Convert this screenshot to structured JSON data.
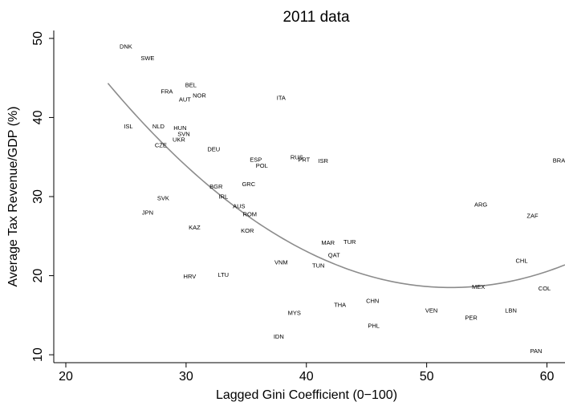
{
  "chart_data": {
    "type": "scatter",
    "title": "2011 data",
    "xlabel": "Lagged Gini Coefficient (0−100)",
    "ylabel": "Average Tax Revenue/GDP (%)",
    "xlim": [
      19,
      61.5
    ],
    "ylim": [
      9,
      51
    ],
    "xticks": [
      20,
      30,
      40,
      50,
      60
    ],
    "yticks": [
      10,
      20,
      30,
      40,
      50
    ],
    "x_tick_labels": [
      "20",
      "30",
      "40",
      "50",
      "60"
    ],
    "y_tick_labels": [
      "10",
      "20",
      "30",
      "40",
      "50"
    ],
    "grid": false,
    "marker": "text labels",
    "points": [
      {
        "label": "DNK",
        "x": 25.0,
        "y": 49.0
      },
      {
        "label": "SWE",
        "x": 26.8,
        "y": 47.5
      },
      {
        "label": "ISL",
        "x": 25.2,
        "y": 38.9
      },
      {
        "label": "FRA",
        "x": 28.4,
        "y": 43.3
      },
      {
        "label": "BEL",
        "x": 30.4,
        "y": 44.1
      },
      {
        "label": "AUT",
        "x": 29.9,
        "y": 42.3
      },
      {
        "label": "NOR",
        "x": 31.1,
        "y": 42.8
      },
      {
        "label": "NLD",
        "x": 27.7,
        "y": 38.9
      },
      {
        "label": "HUN",
        "x": 29.5,
        "y": 38.7
      },
      {
        "label": "SVN",
        "x": 29.8,
        "y": 37.9
      },
      {
        "label": "UKR",
        "x": 29.4,
        "y": 37.2
      },
      {
        "label": "CZE",
        "x": 27.9,
        "y": 36.5
      },
      {
        "label": "DEU",
        "x": 32.3,
        "y": 36.0
      },
      {
        "label": "ITA",
        "x": 37.9,
        "y": 42.5
      },
      {
        "label": "ESP",
        "x": 35.8,
        "y": 34.7
      },
      {
        "label": "POL",
        "x": 36.3,
        "y": 33.9
      },
      {
        "label": "RUS",
        "x": 39.2,
        "y": 35.0
      },
      {
        "label": "PRT",
        "x": 39.8,
        "y": 34.7
      },
      {
        "label": "ISR",
        "x": 41.4,
        "y": 34.5
      },
      {
        "label": "BRA",
        "x": 61.0,
        "y": 34.6
      },
      {
        "label": "BGR",
        "x": 32.5,
        "y": 31.3
      },
      {
        "label": "GRC",
        "x": 35.2,
        "y": 31.6
      },
      {
        "label": "IRL",
        "x": 33.1,
        "y": 30.0
      },
      {
        "label": "AUS",
        "x": 34.4,
        "y": 28.8
      },
      {
        "label": "ROM",
        "x": 35.3,
        "y": 27.8
      },
      {
        "label": "SVK",
        "x": 28.1,
        "y": 29.8
      },
      {
        "label": "JPN",
        "x": 26.8,
        "y": 28.0
      },
      {
        "label": "KAZ",
        "x": 30.7,
        "y": 26.1
      },
      {
        "label": "KOR",
        "x": 35.1,
        "y": 25.7
      },
      {
        "label": "ARG",
        "x": 54.5,
        "y": 29.0
      },
      {
        "label": "ZAF",
        "x": 58.8,
        "y": 27.6
      },
      {
        "label": "MAR",
        "x": 41.8,
        "y": 24.2
      },
      {
        "label": "TUR",
        "x": 43.6,
        "y": 24.3
      },
      {
        "label": "QAT",
        "x": 42.3,
        "y": 22.6
      },
      {
        "label": "VNM",
        "x": 37.9,
        "y": 21.7
      },
      {
        "label": "TUN",
        "x": 41.0,
        "y": 21.3
      },
      {
        "label": "CHL",
        "x": 57.9,
        "y": 21.9
      },
      {
        "label": "HRV",
        "x": 30.3,
        "y": 19.9
      },
      {
        "label": "LTU",
        "x": 33.1,
        "y": 20.1
      },
      {
        "label": "MEX",
        "x": 54.3,
        "y": 18.6
      },
      {
        "label": "COL",
        "x": 59.8,
        "y": 18.4
      },
      {
        "label": "CHN",
        "x": 45.5,
        "y": 16.8
      },
      {
        "label": "THA",
        "x": 42.8,
        "y": 16.3
      },
      {
        "label": "MYS",
        "x": 39.0,
        "y": 15.3
      },
      {
        "label": "VEN",
        "x": 50.4,
        "y": 15.6
      },
      {
        "label": "LBN",
        "x": 57.0,
        "y": 15.6
      },
      {
        "label": "PER",
        "x": 53.7,
        "y": 14.7
      },
      {
        "label": "PHL",
        "x": 45.6,
        "y": 13.7
      },
      {
        "label": "IDN",
        "x": 37.7,
        "y": 12.3
      },
      {
        "label": "PAN",
        "x": 59.1,
        "y": 10.5
      }
    ],
    "fit_line": {
      "type": "quadratic",
      "x_range": [
        23.5,
        61.5
      ],
      "vertex_x": 52.0,
      "vertex_y": 18.5,
      "curvature": 0.0318
    }
  }
}
